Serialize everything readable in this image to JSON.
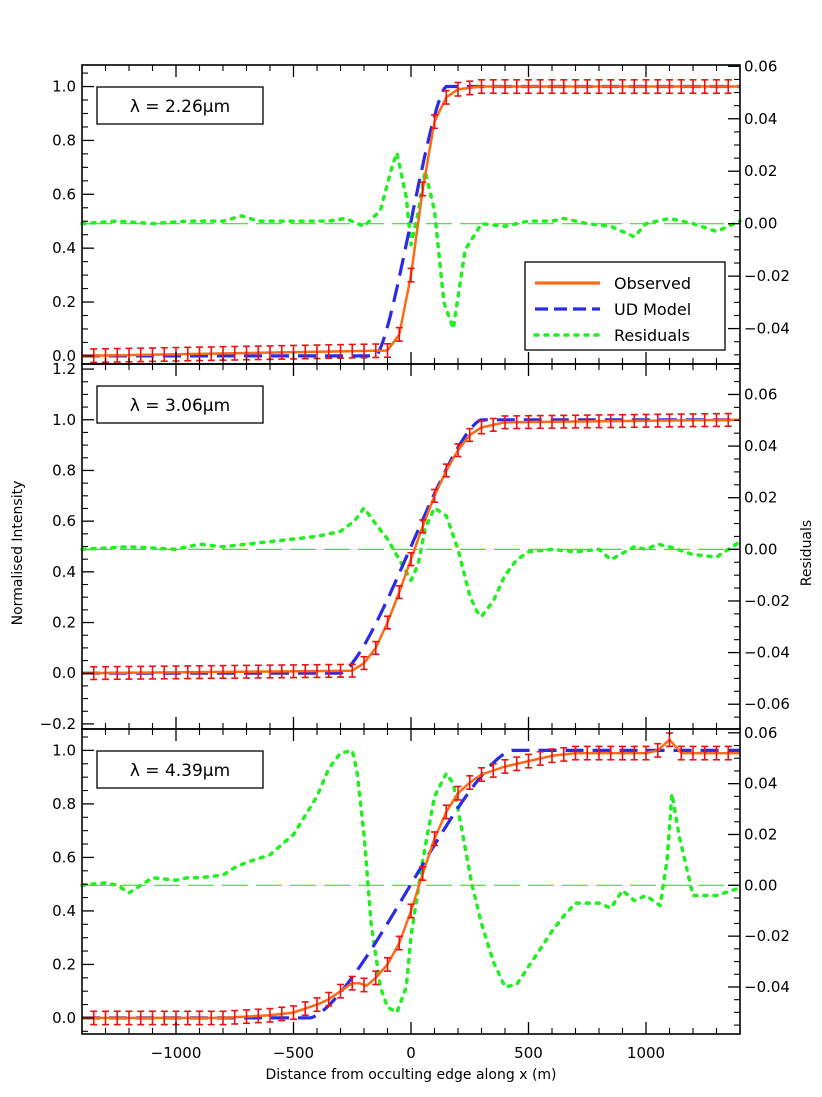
{
  "chart_data": {
    "type": "line",
    "xlabel": "Distance from occulting edge along x (m)",
    "ylabel": "Normalised Intensity",
    "ylabel_right": "Residuals",
    "xlim": [
      -1400,
      1400
    ],
    "x_ticks": [
      -1000,
      -500,
      0,
      500,
      1000
    ],
    "x_tick_labels": [
      "−1000",
      "−500",
      "0",
      "500",
      "1000"
    ],
    "legend": {
      "position": "bottom-right of top panel",
      "entries": [
        {
          "label": "Observed",
          "color": "#FF6A14",
          "style": "solid"
        },
        {
          "label": "UD Model",
          "color": "#2B2BE6",
          "style": "dashed"
        },
        {
          "label": "Residuals",
          "color": "#22EE22",
          "style": "dotted"
        }
      ]
    },
    "colors": {
      "observed": "#FF6A14",
      "errorbar": "#EE1111",
      "model": "#2B2BE6",
      "residuals": "#22EE22",
      "zero_line": "#22EE22"
    },
    "panels": [
      {
        "label": "λ  =  2.26μm",
        "ylim": [
          -0.03,
          1.08
        ],
        "yticks": [
          0.0,
          0.2,
          0.4,
          0.6,
          0.8,
          1.0
        ],
        "ytick_labels": [
          "0.0",
          "0.2",
          "0.4",
          "0.6",
          "0.8",
          "1.0"
        ],
        "rlim": [
          -0.0535,
          0.0605
        ],
        "rticks": [
          -0.04,
          -0.02,
          0.0,
          0.02,
          0.04,
          0.06
        ],
        "rtick_labels": [
          "−0.04",
          "−0.02",
          "0.00",
          "0.02",
          "0.04",
          "0.06"
        ],
        "edge_half_width": 150,
        "observed": {
          "x": [
            -1400,
            -100,
            -50,
            0,
            50,
            100,
            150,
            200,
            300,
            1400
          ],
          "y": [
            0.0,
            0.02,
            0.08,
            0.3,
            0.62,
            0.87,
            0.96,
            0.99,
            1.0,
            1.0
          ],
          "err": 0.025
        },
        "residuals": {
          "x": [
            -1400,
            -1250,
            -1100,
            -950,
            -800,
            -720,
            -650,
            -500,
            -350,
            -280,
            -200,
            -130,
            -80,
            -60,
            -20,
            0,
            30,
            60,
            100,
            140,
            180,
            230,
            300,
            400,
            500,
            600,
            650,
            750,
            850,
            950,
            1000,
            1100,
            1200,
            1300,
            1400
          ],
          "y": [
            0.0,
            0.001,
            0.0,
            0.001,
            0.001,
            0.003,
            0.001,
            0.001,
            0.001,
            0.002,
            -0.001,
            0.005,
            0.022,
            0.027,
            0.01,
            -0.008,
            0.004,
            0.02,
            0.005,
            -0.03,
            -0.04,
            -0.01,
            0.0,
            -0.001,
            0.001,
            0.001,
            0.002,
            0.0,
            -0.001,
            -0.005,
            0.0,
            0.002,
            0.0,
            -0.003,
            0.001
          ]
        }
      },
      {
        "label": "λ  =  3.06μm",
        "ylim": [
          -0.22,
          1.22
        ],
        "yticks": [
          -0.2,
          0.0,
          0.2,
          0.4,
          0.6,
          0.8,
          1.0,
          1.2
        ],
        "ytick_labels": [
          "−0.2",
          "0.0",
          "0.2",
          "0.4",
          "0.6",
          "0.8",
          "1.0",
          "1.2"
        ],
        "rlim": [
          -0.0696,
          0.0718
        ],
        "rticks": [
          -0.06,
          -0.04,
          -0.02,
          0.0,
          0.02,
          0.04,
          0.06
        ],
        "rtick_labels": [
          "−0.06",
          "−0.04",
          "−0.02",
          "0.00",
          "0.02",
          "0.04",
          "0.06"
        ],
        "edge_half_width": 300,
        "observed": {
          "x": [
            -1400,
            -250,
            -200,
            -150,
            -100,
            -50,
            0,
            50,
            100,
            150,
            200,
            250,
            300,
            400,
            1400
          ],
          "y": [
            0.0,
            0.01,
            0.04,
            0.1,
            0.2,
            0.32,
            0.45,
            0.58,
            0.7,
            0.8,
            0.88,
            0.94,
            0.97,
            0.99,
            1.0
          ],
          "err": 0.025
        },
        "residuals": {
          "x": [
            -1400,
            -1200,
            -1000,
            -900,
            -800,
            -700,
            -600,
            -500,
            -400,
            -300,
            -240,
            -200,
            -160,
            -100,
            -50,
            0,
            30,
            60,
            100,
            150,
            200,
            250,
            280,
            300,
            350,
            400,
            450,
            500,
            600,
            700,
            800,
            850,
            950,
            1000,
            1050,
            1100,
            1200,
            1300,
            1400
          ],
          "y": [
            0.0,
            0.001,
            0.0,
            0.002,
            0.001,
            0.002,
            0.003,
            0.004,
            0.005,
            0.007,
            0.011,
            0.016,
            0.011,
            0.004,
            -0.004,
            -0.012,
            -0.006,
            0.008,
            0.016,
            0.013,
            0.0,
            -0.018,
            -0.024,
            -0.026,
            -0.02,
            -0.01,
            -0.004,
            -0.001,
            0.0,
            -0.001,
            0.0,
            -0.004,
            0.001,
            0.0,
            0.002,
            0.001,
            -0.002,
            -0.003,
            0.003
          ]
        }
      },
      {
        "label": "λ  =  4.39μm",
        "ylim": [
          -0.06,
          1.08
        ],
        "yticks": [
          0.0,
          0.2,
          0.4,
          0.6,
          0.8,
          1.0
        ],
        "ytick_labels": [
          "0.0",
          "0.2",
          "0.4",
          "0.6",
          "0.8",
          "1.0"
        ],
        "rlim": [
          -0.0585,
          0.0615
        ],
        "rticks": [
          -0.04,
          -0.02,
          0.0,
          0.02,
          0.04,
          0.06
        ],
        "rtick_labels": [
          "−0.04",
          "−0.02",
          "0.00",
          "0.02",
          "0.04",
          "0.06"
        ],
        "edge_half_width": 430,
        "observed": {
          "x": [
            -1400,
            -1200,
            -1000,
            -800,
            -600,
            -500,
            -400,
            -350,
            -300,
            -250,
            -220,
            -190,
            -150,
            -100,
            -50,
            0,
            50,
            100,
            150,
            200,
            250,
            300,
            400,
            500,
            600,
            700,
            800,
            900,
            1000,
            1050,
            1100,
            1150,
            1200,
            1400
          ],
          "y": [
            0.0,
            0.0,
            0.0,
            0.0,
            0.01,
            0.02,
            0.05,
            0.07,
            0.1,
            0.13,
            0.13,
            0.12,
            0.15,
            0.2,
            0.28,
            0.4,
            0.54,
            0.67,
            0.77,
            0.84,
            0.88,
            0.91,
            0.94,
            0.96,
            0.98,
            0.99,
            0.99,
            0.99,
            0.99,
            1.0,
            1.04,
            0.99,
            0.99,
            0.99
          ],
          "err": 0.025
        },
        "residuals": {
          "x": [
            -1400,
            -1300,
            -1250,
            -1200,
            -1150,
            -1100,
            -1000,
            -950,
            -900,
            -800,
            -750,
            -700,
            -600,
            -500,
            -400,
            -350,
            -300,
            -250,
            -230,
            -200,
            -170,
            -130,
            -100,
            -60,
            -20,
            0,
            50,
            100,
            150,
            180,
            220,
            260,
            300,
            350,
            400,
            450,
            500,
            550,
            600,
            650,
            700,
            800,
            850,
            900,
            950,
            1000,
            1060,
            1090,
            1110,
            1140,
            1200,
            1300,
            1400
          ],
          "y": [
            0.0,
            0.001,
            0.0,
            -0.003,
            0.0,
            0.003,
            0.002,
            0.003,
            0.003,
            0.004,
            0.007,
            0.009,
            0.012,
            0.02,
            0.035,
            0.046,
            0.052,
            0.053,
            0.045,
            0.02,
            -0.015,
            -0.04,
            -0.048,
            -0.05,
            -0.04,
            -0.02,
            0.01,
            0.035,
            0.044,
            0.04,
            0.02,
            0.0,
            -0.015,
            -0.03,
            -0.04,
            -0.039,
            -0.032,
            -0.025,
            -0.018,
            -0.012,
            -0.007,
            -0.007,
            -0.009,
            -0.002,
            -0.006,
            -0.004,
            -0.008,
            0.01,
            0.036,
            0.02,
            -0.004,
            -0.004,
            -0.001
          ]
        }
      }
    ]
  }
}
